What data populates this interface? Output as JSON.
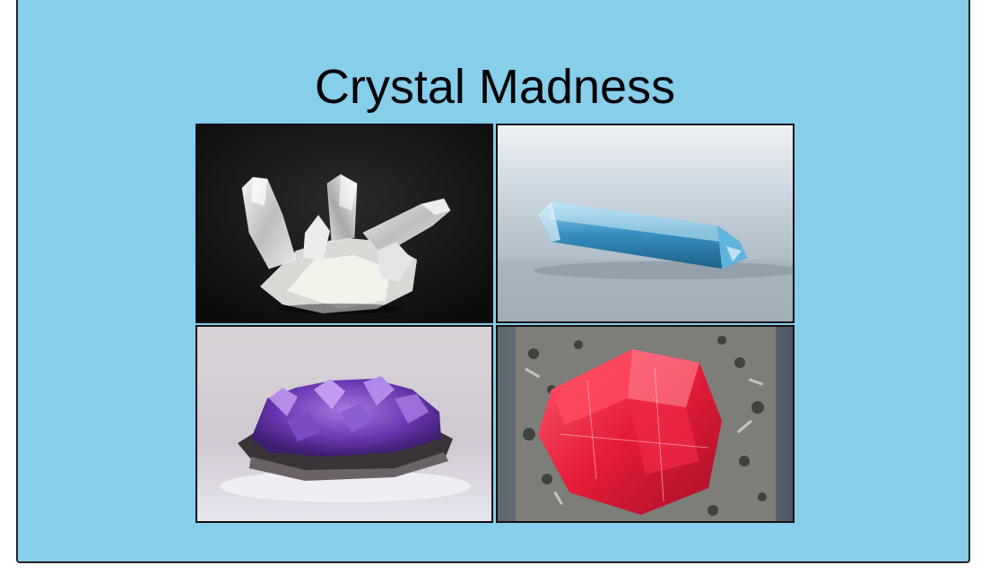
{
  "slide": {
    "title": "Crystal Madness",
    "background_color": "#87ceeb",
    "border_color": "#222222"
  },
  "gallery": {
    "images": [
      {
        "subject": "clear-quartz-cluster"
      },
      {
        "subject": "blue-aquamarine-point"
      },
      {
        "subject": "purple-amethyst-geode"
      },
      {
        "subject": "red-rhodochrosite-crystal"
      }
    ]
  }
}
